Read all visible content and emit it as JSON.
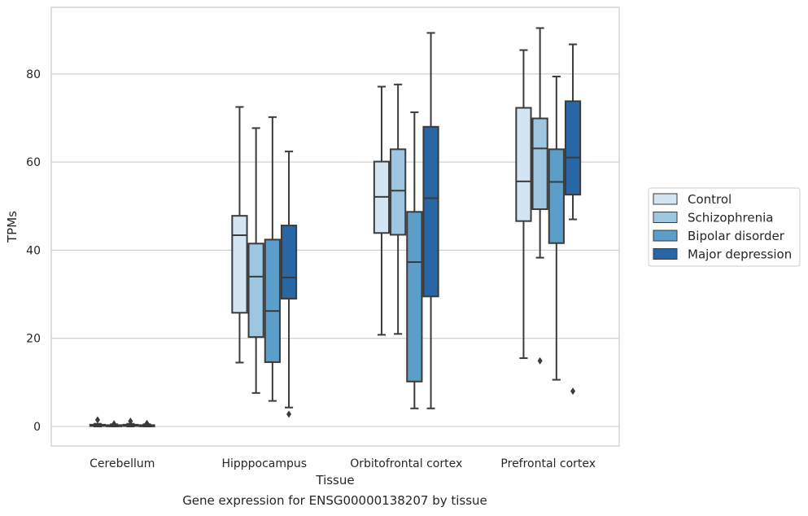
{
  "chart_data": {
    "type": "box",
    "xlabel": "Tissue",
    "ylabel": "TPMs",
    "ylim": [
      -4.3,
      94.5
    ],
    "yticks": [
      0,
      20,
      40,
      60,
      80
    ],
    "grid": "horizontal",
    "legend_position": "right",
    "categories": [
      "Cerebellum",
      "Hipppocampus",
      "Orbitofrontal cortex",
      "Prefrontal cortex"
    ],
    "series": [
      {
        "name": "Control",
        "color": "#d3e4f3",
        "boxes": [
          {
            "whislo": 0,
            "q1": 0.1,
            "med": 0.2,
            "q3": 0.4,
            "whishi": 0.6,
            "fliers": [
              1.5
            ]
          },
          {
            "whislo": 14.5,
            "q1": 25.8,
            "med": 43.4,
            "q3": 47.8,
            "whishi": 72.5,
            "fliers": []
          },
          {
            "whislo": 20.8,
            "q1": 43.9,
            "med": 52.1,
            "q3": 60.1,
            "whishi": 77.1,
            "fliers": []
          },
          {
            "whislo": 15.5,
            "q1": 46.6,
            "med": 55.6,
            "q3": 72.3,
            "whishi": 85.4,
            "fliers": []
          }
        ]
      },
      {
        "name": "Schizophrenia",
        "color": "#9dc6e0",
        "boxes": [
          {
            "whislo": 0,
            "q1": 0.1,
            "med": 0.15,
            "q3": 0.3,
            "whishi": 0.5,
            "fliers": [
              0.6
            ]
          },
          {
            "whislo": 7.6,
            "q1": 20.3,
            "med": 34.0,
            "q3": 41.5,
            "whishi": 67.7,
            "fliers": []
          },
          {
            "whislo": 21.0,
            "q1": 43.5,
            "med": 53.5,
            "q3": 62.9,
            "whishi": 77.6,
            "fliers": []
          },
          {
            "whislo": 38.3,
            "q1": 49.3,
            "med": 63.1,
            "q3": 69.9,
            "whishi": 90.4,
            "fliers": [
              14.9
            ]
          }
        ]
      },
      {
        "name": "Bipolar disorder",
        "color": "#5a9ec9",
        "boxes": [
          {
            "whislo": 0,
            "q1": 0.1,
            "med": 0.2,
            "q3": 0.4,
            "whishi": 0.6,
            "fliers": [
              1.2
            ]
          },
          {
            "whislo": 5.8,
            "q1": 14.6,
            "med": 26.2,
            "q3": 42.4,
            "whishi": 70.2,
            "fliers": []
          },
          {
            "whislo": 4.1,
            "q1": 10.2,
            "med": 37.3,
            "q3": 48.7,
            "whishi": 71.3,
            "fliers": []
          },
          {
            "whislo": 10.6,
            "q1": 41.6,
            "med": 55.5,
            "q3": 62.9,
            "whishi": 79.4,
            "fliers": []
          }
        ]
      },
      {
        "name": "Major depression",
        "color": "#2866a6",
        "boxes": [
          {
            "whislo": 0,
            "q1": 0.1,
            "med": 0.15,
            "q3": 0.3,
            "whishi": 0.5,
            "fliers": [
              0.7
            ]
          },
          {
            "whislo": 4.3,
            "q1": 29.0,
            "med": 33.8,
            "q3": 45.6,
            "whishi": 62.4,
            "fliers": [
              2.8
            ]
          },
          {
            "whislo": 4.1,
            "q1": 29.5,
            "med": 51.8,
            "q3": 68.0,
            "whishi": 89.3,
            "fliers": []
          },
          {
            "whislo": 47.0,
            "q1": 52.6,
            "med": 61.0,
            "q3": 73.8,
            "whishi": 86.7,
            "fliers": [
              8.0
            ]
          }
        ]
      }
    ]
  },
  "caption": "Gene expression for ENSG00000138207 by tissue"
}
